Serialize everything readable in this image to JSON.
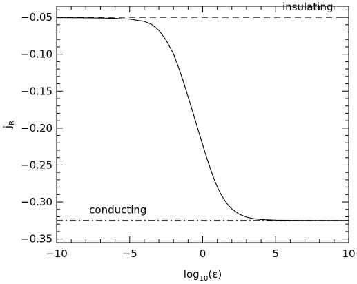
{
  "chart_data": {
    "type": "line",
    "xlim": [
      -10,
      10
    ],
    "ylim": [
      -0.355,
      -0.035
    ],
    "grid": false,
    "x_axis": {
      "label_main": "log",
      "label_sub": "10",
      "label_arg": "(ε)",
      "ticks": [
        -10,
        -5,
        0,
        5,
        10
      ],
      "tick_labels": [
        "−10",
        "−5",
        "0",
        "5",
        "10"
      ],
      "minor_step": 1
    },
    "y_axis": {
      "label_main": "j",
      "label_sub": "R",
      "ticks": [
        -0.35,
        -0.3,
        -0.25,
        -0.2,
        -0.15,
        -0.1,
        -0.05
      ],
      "tick_labels": [
        "−0.35",
        "−0.30",
        "−0.25",
        "−0.20",
        "−0.15",
        "−0.10",
        "−0.05"
      ],
      "minor_step": 0.01
    },
    "series": [
      {
        "style": "solid",
        "x": [
          -10,
          -8,
          -6,
          -5,
          -4,
          -3.5,
          -3,
          -2.5,
          -2,
          -1.75,
          -1.5,
          -1.25,
          -1,
          -0.75,
          -0.5,
          -0.25,
          0,
          0.25,
          0.5,
          0.75,
          1,
          1.25,
          1.5,
          1.75,
          2,
          2.5,
          3,
          3.5,
          4,
          5,
          6,
          8,
          10
        ],
        "y": [
          -0.0505,
          -0.0507,
          -0.0514,
          -0.0525,
          -0.0555,
          -0.0595,
          -0.0675,
          -0.081,
          -0.0995,
          -0.1125,
          -0.1265,
          -0.1415,
          -0.1575,
          -0.1735,
          -0.19,
          -0.2065,
          -0.2225,
          -0.2385,
          -0.2535,
          -0.2675,
          -0.2795,
          -0.2895,
          -0.2975,
          -0.3045,
          -0.3095,
          -0.3165,
          -0.3205,
          -0.3225,
          -0.3237,
          -0.3245,
          -0.3248,
          -0.3249,
          -0.325
        ]
      },
      {
        "style": "dashed",
        "name": "insulating",
        "x": [
          -10,
          10
        ],
        "y": [
          -0.05,
          -0.05
        ]
      },
      {
        "style": "dashdot",
        "name": "conducting",
        "x": [
          -10,
          10
        ],
        "y": [
          -0.325,
          -0.325
        ]
      }
    ],
    "annotations": [
      {
        "text": "insulating",
        "x": 7.2,
        "y": -0.0405
      },
      {
        "text": "conducting",
        "x": -5.8,
        "y": -0.3155
      }
    ]
  }
}
